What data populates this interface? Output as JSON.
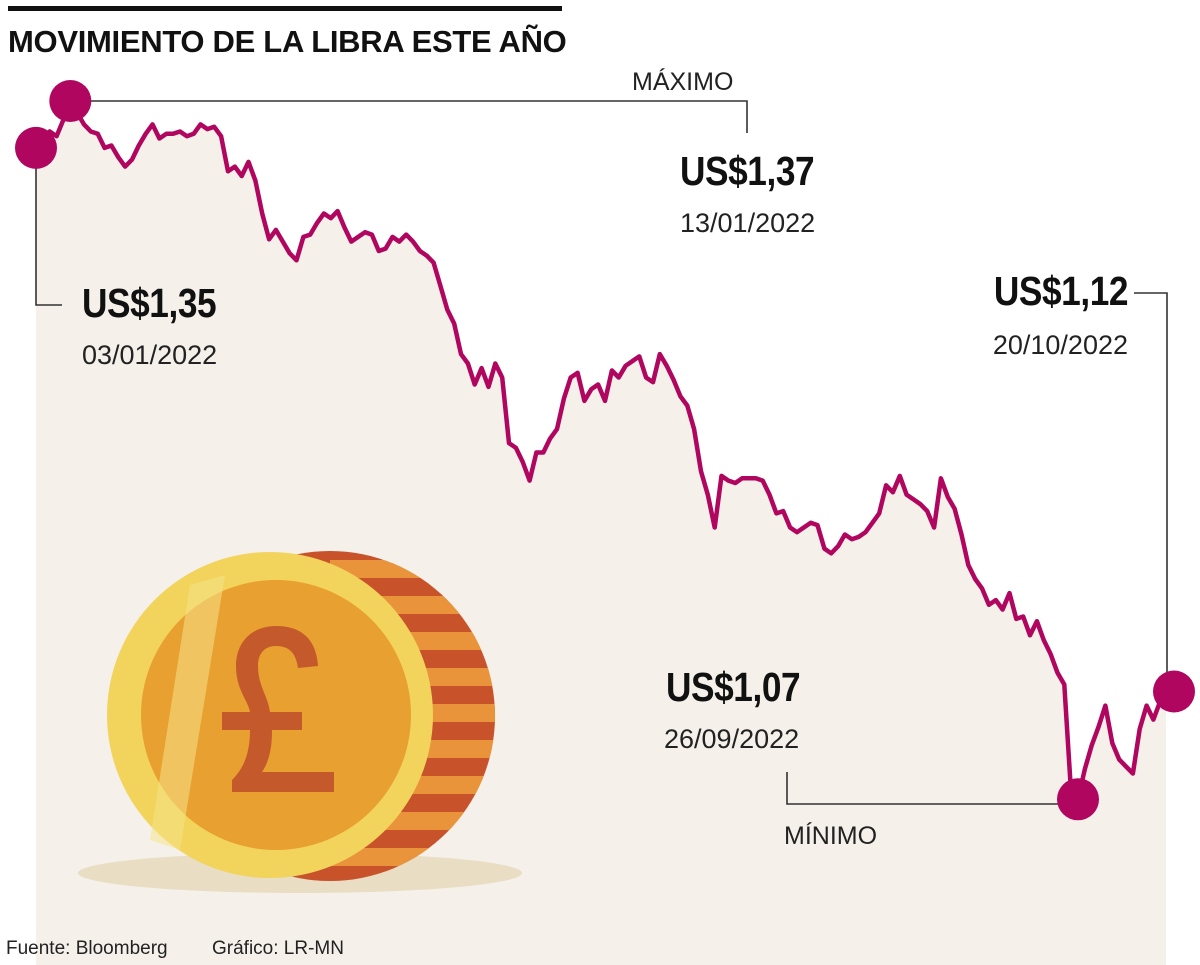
{
  "header": {
    "title": "MOVIMIENTO DE LA LIBRA ESTE AÑO"
  },
  "footer": {
    "source": "Fuente: Bloomberg",
    "credit": "Gráfico: LR-MN"
  },
  "annotations": {
    "start": {
      "value": "US$1,35",
      "date": "03/01/2022"
    },
    "max": {
      "label": "MÁXIMO",
      "value": "US$1,37",
      "date": "13/01/2022"
    },
    "min": {
      "label": "MÍNIMO",
      "value": "US$1,07",
      "date": "26/09/2022"
    },
    "end": {
      "value": "US$1,12",
      "date": "20/10/2022"
    }
  },
  "colors": {
    "line": "#b0065f",
    "area": "#f5f1ea",
    "leader": "#333333",
    "coin_face": "#e8a030",
    "coin_rim": "#f2d35c",
    "coin_side": "#c8522a",
    "pound_sign": "#c45a2b"
  },
  "icons": {
    "coin": "pound-coin-icon"
  },
  "chart_data": {
    "type": "line",
    "title": "MOVIMIENTO DE LA LIBRA ESTE AÑO",
    "xlabel": "",
    "ylabel": "",
    "x_range": [
      "03/01/2022",
      "20/10/2022"
    ],
    "ylim": [
      1.07,
      1.37
    ],
    "grid": false,
    "series": [
      {
        "values": [
          1.35,
          1.353,
          1.357,
          1.355,
          1.362,
          1.37,
          1.365,
          1.36,
          1.357,
          1.356,
          1.35,
          1.351,
          1.346,
          1.342,
          1.345,
          1.351,
          1.356,
          1.36,
          1.354,
          1.356,
          1.356,
          1.357,
          1.355,
          1.356,
          1.36,
          1.358,
          1.359,
          1.355,
          1.34,
          1.342,
          1.338,
          1.344,
          1.336,
          1.322,
          1.311,
          1.315,
          1.31,
          1.305,
          1.302,
          1.312,
          1.313,
          1.318,
          1.322,
          1.32,
          1.323,
          1.316,
          1.31,
          1.312,
          1.314,
          1.313,
          1.306,
          1.307,
          1.312,
          1.31,
          1.313,
          1.31,
          1.306,
          1.304,
          1.301,
          1.291,
          1.281,
          1.275,
          1.262,
          1.258,
          1.249,
          1.256,
          1.248,
          1.258,
          1.252,
          1.224,
          1.222,
          1.216,
          1.208,
          1.22,
          1.22,
          1.226,
          1.23,
          1.243,
          1.252,
          1.254,
          1.242,
          1.247,
          1.249,
          1.242,
          1.255,
          1.252,
          1.257,
          1.259,
          1.261,
          1.252,
          1.25,
          1.262,
          1.257,
          1.251,
          1.244,
          1.24,
          1.23,
          1.212,
          1.202,
          1.188,
          1.21,
          1.208,
          1.207,
          1.209,
          1.209,
          1.209,
          1.208,
          1.202,
          1.194,
          1.195,
          1.188,
          1.186,
          1.188,
          1.19,
          1.189,
          1.179,
          1.177,
          1.18,
          1.185,
          1.183,
          1.184,
          1.186,
          1.19,
          1.194,
          1.206,
          1.203,
          1.21,
          1.202,
          1.2,
          1.198,
          1.195,
          1.188,
          1.209,
          1.201,
          1.196,
          1.185,
          1.172,
          1.166,
          1.162,
          1.155,
          1.157,
          1.153,
          1.16,
          1.149,
          1.15,
          1.142,
          1.148,
          1.14,
          1.134,
          1.126,
          1.121,
          1.074,
          1.072,
          1.085,
          1.095,
          1.103,
          1.112,
          1.096,
          1.089,
          1.086,
          1.083,
          1.102,
          1.112,
          1.106,
          1.114,
          1.116,
          1.118
        ]
      }
    ],
    "points": [
      {
        "label": "MÁXIMO",
        "date": "13/01/2022",
        "y": 1.37
      },
      {
        "label": "MÍNIMO",
        "date": "26/09/2022",
        "y": 1.07
      },
      {
        "date": "03/01/2022",
        "y": 1.35
      },
      {
        "date": "20/10/2022",
        "y": 1.12
      }
    ]
  }
}
